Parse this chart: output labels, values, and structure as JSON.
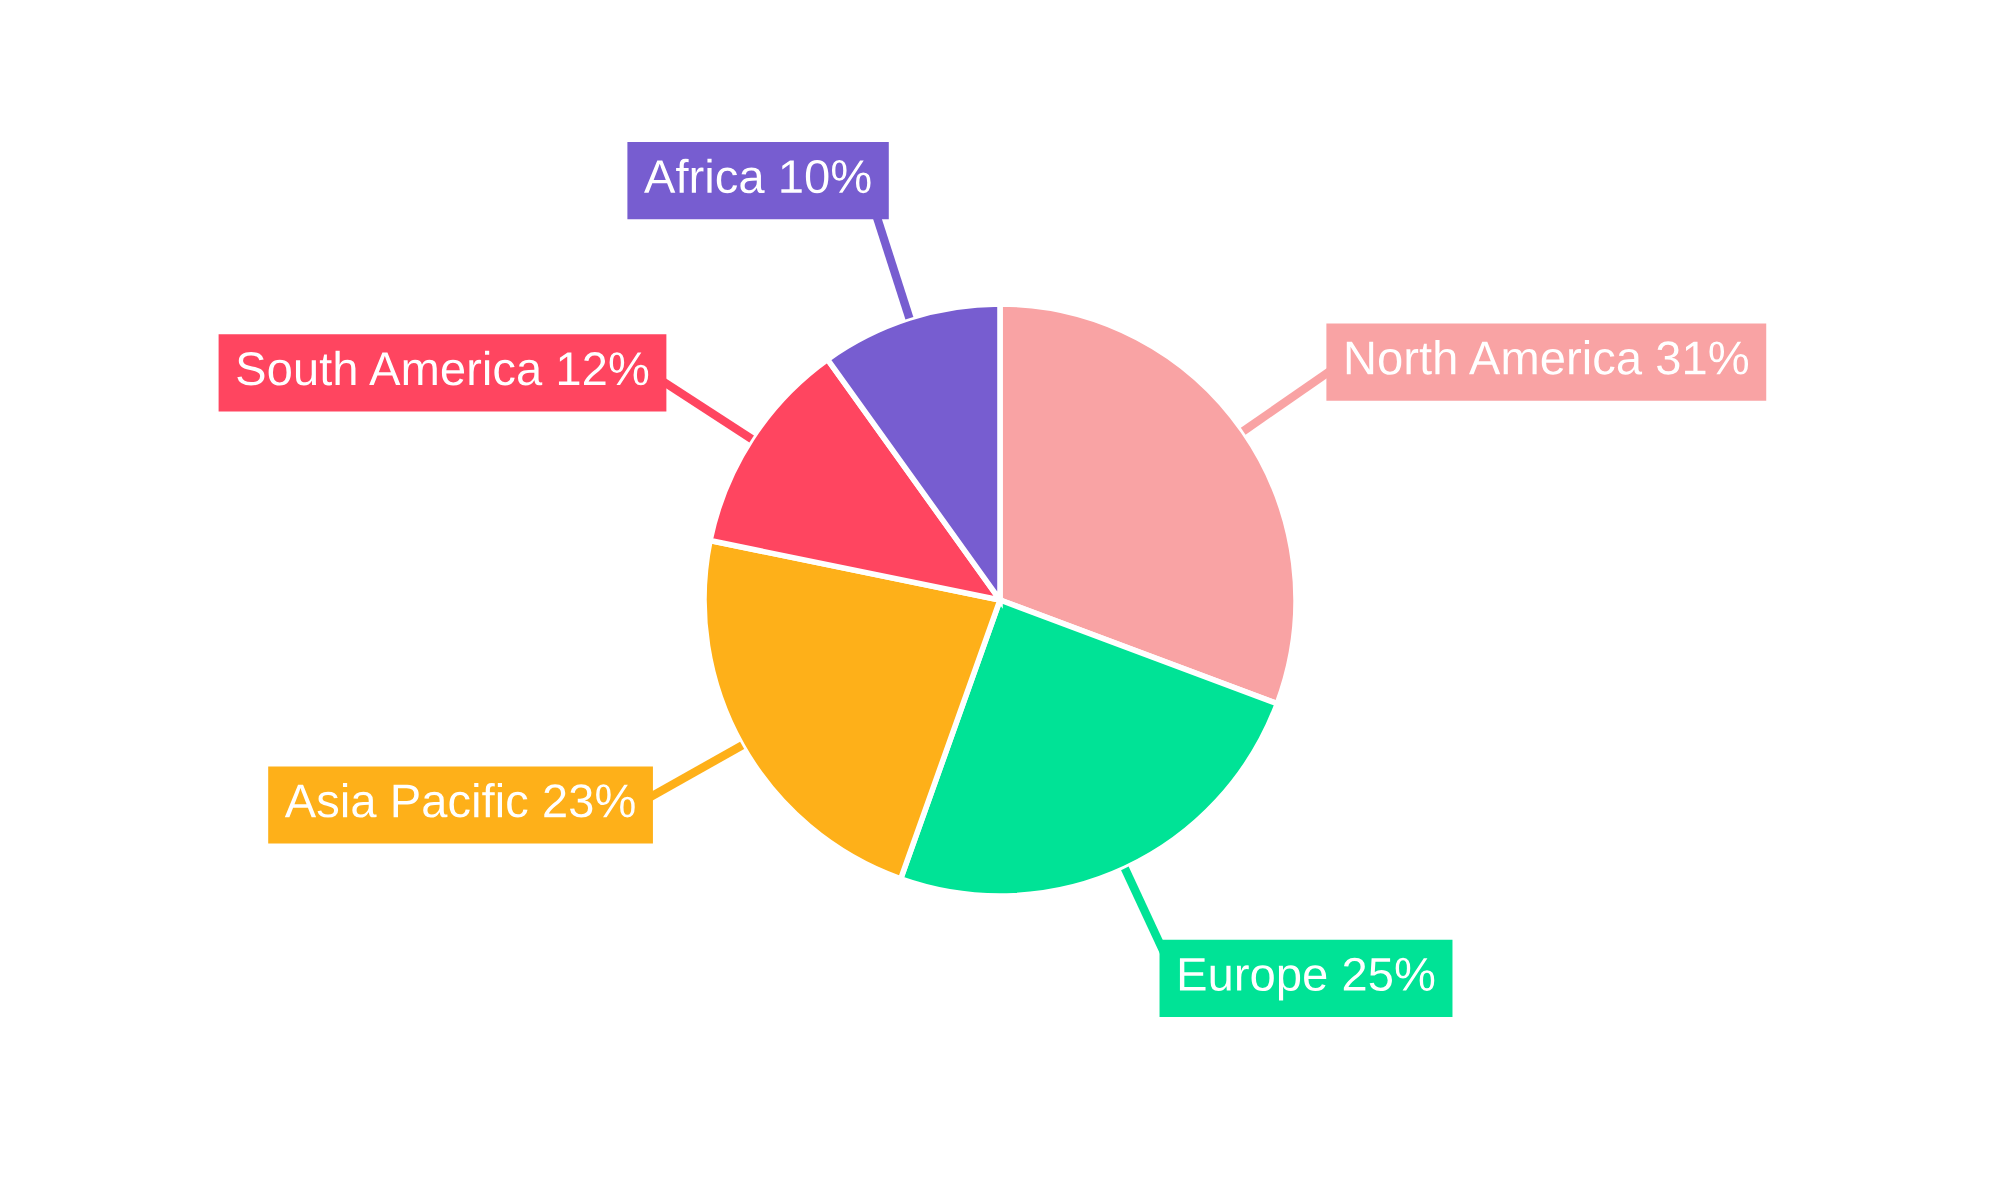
{
  "chart_data": {
    "type": "pie",
    "categories": [
      "North America",
      "Europe",
      "Asia Pacific",
      "South America",
      "Africa"
    ],
    "values": [
      31,
      25,
      23,
      12,
      10
    ],
    "value_labels": [
      "31%",
      "25%",
      "23%",
      "12%",
      "10%"
    ],
    "colors": [
      "#f9a3a4",
      "#00e396",
      "#feb019",
      "#ff4560",
      "#775dd0"
    ],
    "legend": false
  }
}
